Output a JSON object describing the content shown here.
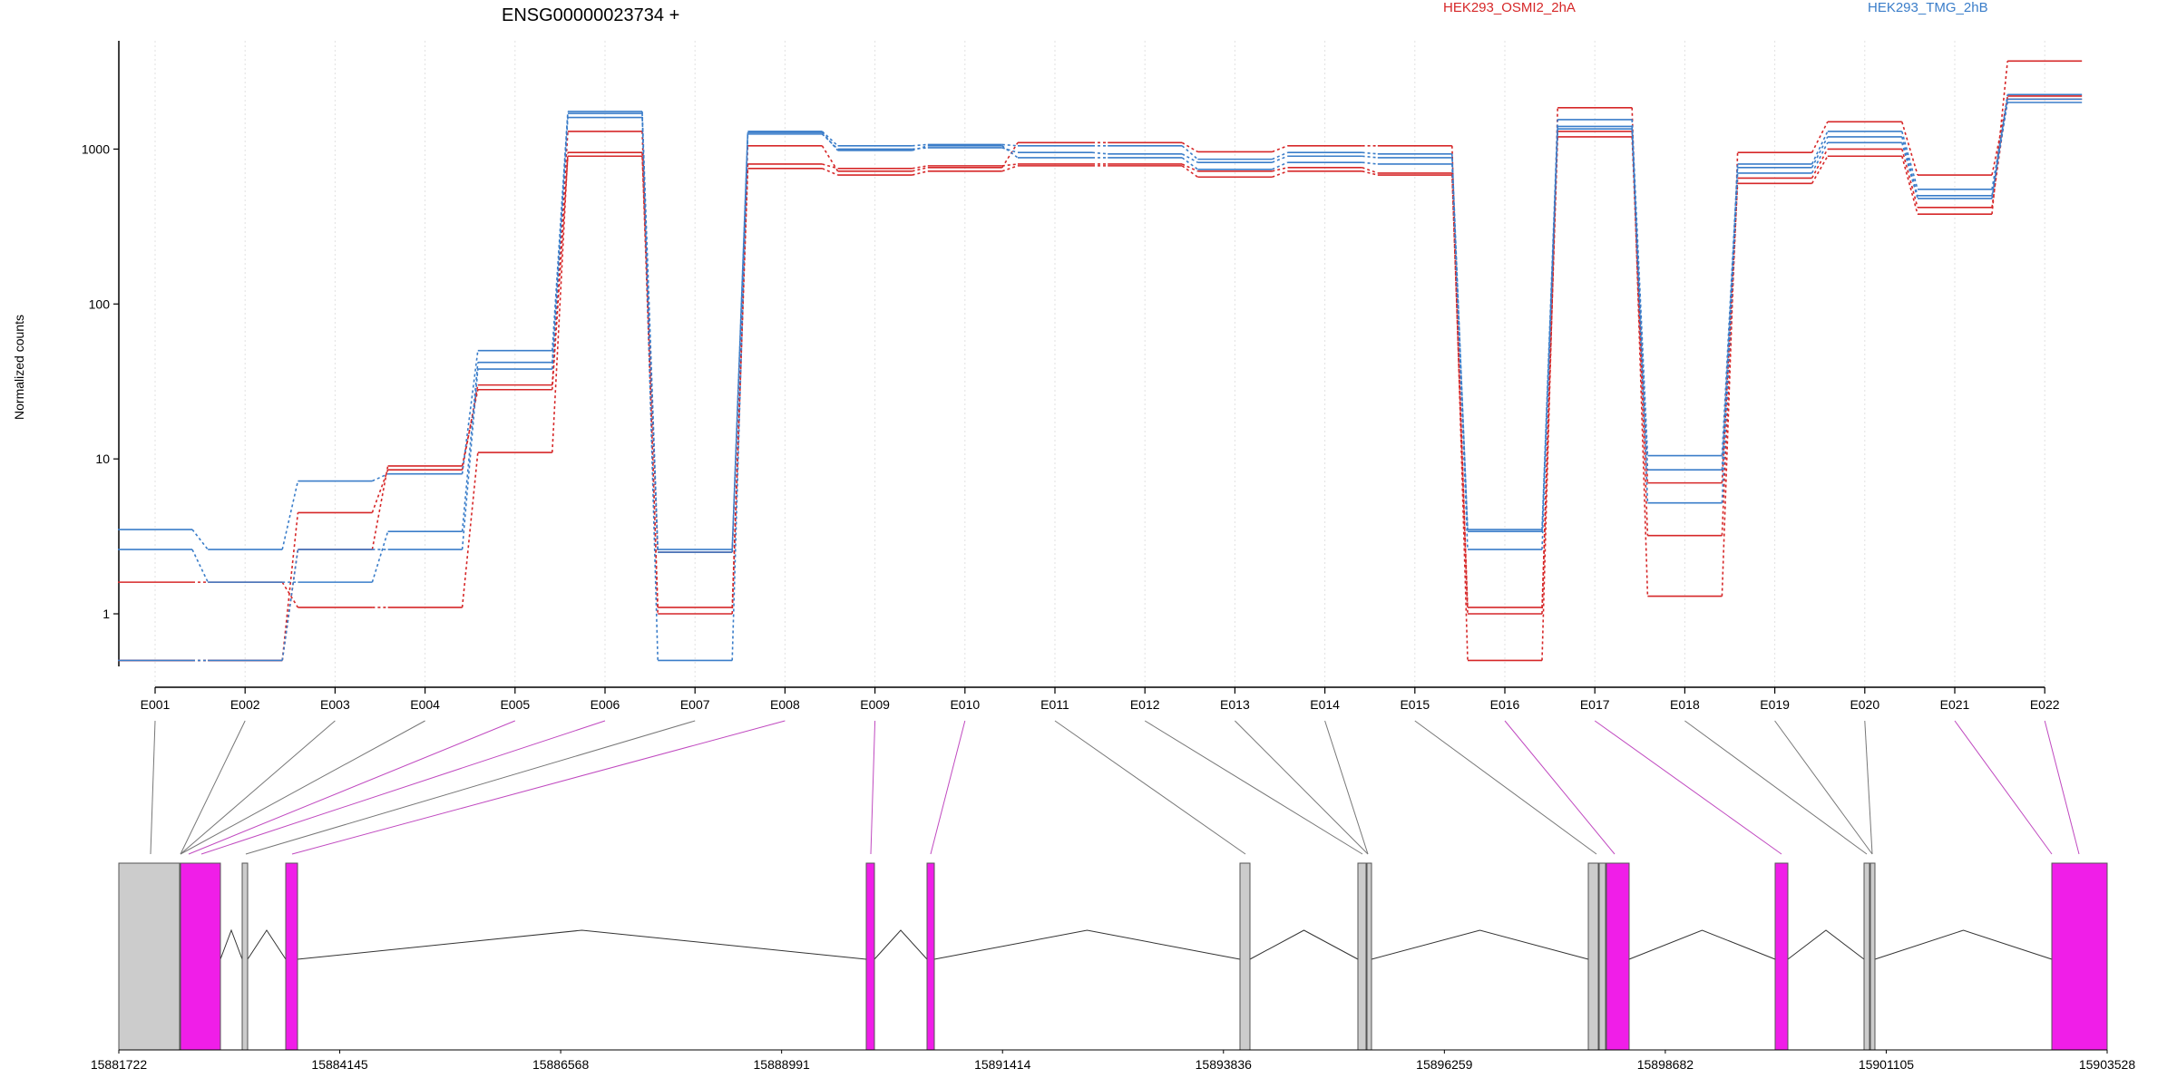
{
  "chart_data": {
    "type": "line",
    "title": "ENSG00000023734 +",
    "ylabel": "Normalized counts",
    "xlabel": "",
    "yscale": "log",
    "ylim": [
      0.4,
      5000
    ],
    "yticks": [
      1,
      10,
      100,
      1000
    ],
    "ytick_labels": [
      "1",
      "10",
      "100",
      "1000"
    ],
    "grid": "vertical dotted at exons",
    "legend_position": "top",
    "categories": [
      "E001",
      "E002",
      "E003",
      "E004",
      "E005",
      "E006",
      "E007",
      "E008",
      "E009",
      "E010",
      "E011",
      "E012",
      "E013",
      "E014",
      "E015",
      "E016",
      "E017",
      "E018",
      "E019",
      "E020",
      "E021",
      "E022"
    ],
    "groups": [
      {
        "name": "HEK293_OSMI2_2hA",
        "color": "#d62728"
      },
      {
        "name": "HEK293_TMG_2hB",
        "color": "#3a7dc9"
      }
    ],
    "series": [
      {
        "group": 0,
        "values": [
          1.6,
          1.6,
          1.1,
          1.1,
          11,
          950,
          1.1,
          800,
          750,
          780,
          800,
          800,
          720,
          760,
          700,
          1.1,
          1200,
          7,
          600,
          900,
          380,
          3700
        ]
      },
      {
        "group": 0,
        "values": [
          0.5,
          0.5,
          4.5,
          8.5,
          30,
          1300,
          1.0,
          750,
          680,
          720,
          780,
          780,
          660,
          720,
          680,
          1.0,
          1300,
          3.2,
          650,
          1000,
          420,
          2200
        ]
      },
      {
        "group": 0,
        "values": [
          0.5,
          0.5,
          2.6,
          9.0,
          28,
          900,
          2.5,
          1050,
          720,
          760,
          1100,
          1100,
          960,
          1050,
          1050,
          0.5,
          1850,
          1.3,
          950,
          1500,
          680,
          2100
        ]
      },
      {
        "group": 1,
        "values": [
          3.5,
          2.6,
          7.2,
          8.0,
          50,
          1750,
          2.6,
          1300,
          1050,
          1070,
          1050,
          1050,
          860,
          950,
          930,
          3.5,
          1550,
          10.5,
          800,
          1300,
          550,
          2100
        ]
      },
      {
        "group": 1,
        "values": [
          2.6,
          1.6,
          1.6,
          3.4,
          42,
          1700,
          0.5,
          1250,
          1000,
          1020,
          950,
          930,
          820,
          900,
          880,
          3.4,
          1400,
          8.5,
          760,
          1200,
          500,
          2000
        ]
      },
      {
        "group": 1,
        "values": [
          0.5,
          0.5,
          2.6,
          2.6,
          38,
          1600,
          2.5,
          1280,
          980,
          1050,
          880,
          880,
          740,
          820,
          800,
          2.6,
          1350,
          5.2,
          700,
          1100,
          480,
          2250
        ]
      }
    ],
    "gene_model": {
      "coord_ticks": [
        "15881722",
        "15884145",
        "15886568",
        "15888991",
        "15891414",
        "15893836",
        "15896259",
        "15898682",
        "15901105",
        "15903528"
      ],
      "exon_colors": {
        "tested": "#f01ee8",
        "untested": "#cccccc"
      }
    }
  }
}
